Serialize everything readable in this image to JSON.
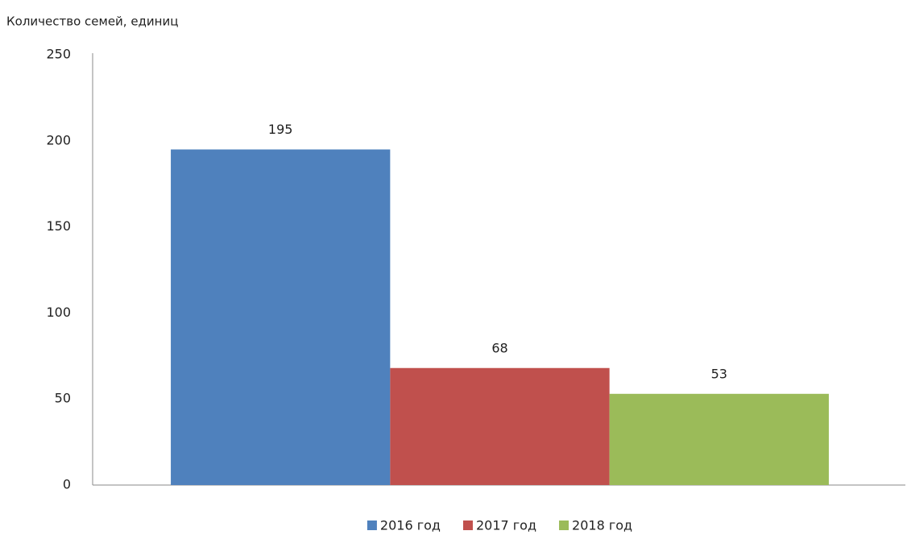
{
  "chart_data": {
    "type": "bar",
    "y_label": "Количество семей, единиц",
    "categories": [
      null
    ],
    "series": [
      {
        "name": "2016 год",
        "color": "#4f81bd",
        "values": [
          195
        ]
      },
      {
        "name": "2017 год",
        "color": "#c0504d",
        "values": [
          68
        ]
      },
      {
        "name": "2018 год",
        "color": "#9bbb59",
        "values": [
          53
        ]
      }
    ],
    "ylim": [
      0,
      250
    ],
    "yticks": [
      0,
      50,
      100,
      150,
      200,
      250
    ],
    "grid": false,
    "legend": "bottom",
    "data_labels": true
  }
}
